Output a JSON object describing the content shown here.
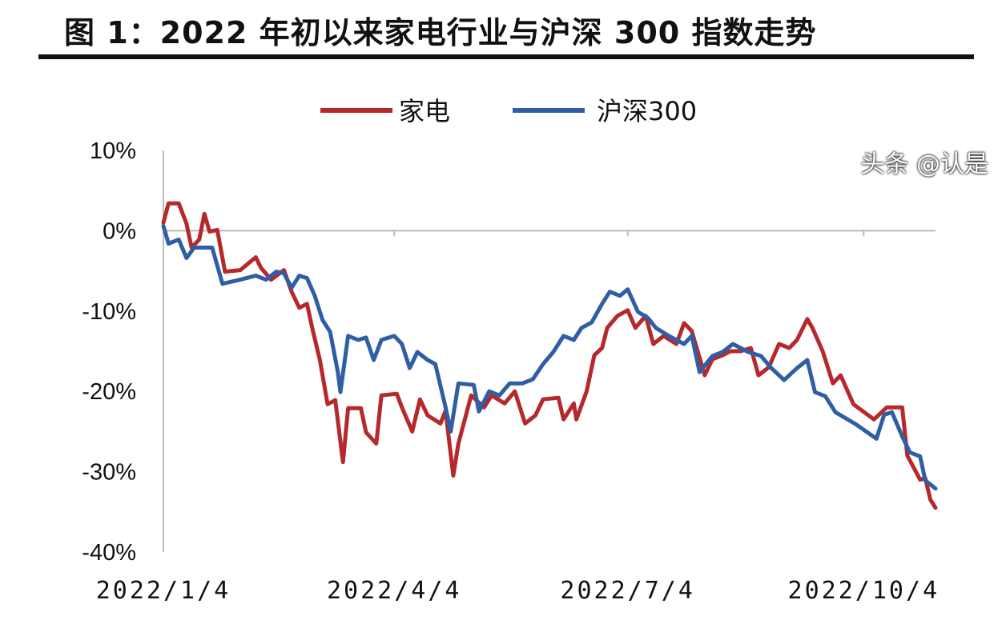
{
  "title": "图 1：2022 年初以来家电行业与沪深 300 指数走势",
  "watermark": "头条 @认是",
  "chart_data": {
    "type": "line",
    "title": "图 1：2022 年初以来家电行业与沪深 300 指数走势",
    "xlabel": "",
    "ylabel": "",
    "ylim": [
      -40,
      10
    ],
    "yticks": [
      "10%",
      "0%",
      "-10%",
      "-20%",
      "-30%",
      "-40%"
    ],
    "ytick_values": [
      10,
      0,
      -10,
      -20,
      -30,
      -40
    ],
    "xticks": [
      "2022/1/4",
      "2022/4/4",
      "2022/7/4",
      "2022/10/4"
    ],
    "xtick_values": [
      "2022-01-04",
      "2022-04-04",
      "2022-07-04",
      "2022-10-04"
    ],
    "xlim": [
      "2022-01-04",
      "2022-11-01"
    ],
    "grid": false,
    "legend": "top-center",
    "series": [
      {
        "name": "家电",
        "color": "#B5292C",
        "points": [
          [
            "2022-01-04",
            1.0
          ],
          [
            "2022-01-06",
            3.4
          ],
          [
            "2022-01-10",
            3.4
          ],
          [
            "2022-01-13",
            0.9
          ],
          [
            "2022-01-15",
            -2.1
          ],
          [
            "2022-01-18",
            -1.1
          ],
          [
            "2022-01-20",
            2.1
          ],
          [
            "2022-01-22",
            -0.1
          ],
          [
            "2022-01-25",
            0.1
          ],
          [
            "2022-01-28",
            -5.1
          ],
          [
            "2022-02-03",
            -4.9
          ],
          [
            "2022-02-09",
            -3.3
          ],
          [
            "2022-02-11",
            -4.6
          ],
          [
            "2022-02-15",
            -6.1
          ],
          [
            "2022-02-20",
            -4.9
          ],
          [
            "2022-02-23",
            -7.6
          ],
          [
            "2022-02-26",
            -9.6
          ],
          [
            "2022-03-01",
            -9.1
          ],
          [
            "2022-03-03",
            -12.1
          ],
          [
            "2022-03-06",
            -16.1
          ],
          [
            "2022-03-09",
            -21.6
          ],
          [
            "2022-03-12",
            -21.1
          ],
          [
            "2022-03-15",
            -28.8
          ],
          [
            "2022-03-17",
            -22.1
          ],
          [
            "2022-03-22",
            -22.1
          ],
          [
            "2022-03-24",
            -25.1
          ],
          [
            "2022-03-28",
            -26.5
          ],
          [
            "2022-03-30",
            -20.5
          ],
          [
            "2022-04-05",
            -20.3
          ],
          [
            "2022-04-07",
            -22.0
          ],
          [
            "2022-04-11",
            -25.0
          ],
          [
            "2022-04-14",
            -21.0
          ],
          [
            "2022-04-17",
            -23.0
          ],
          [
            "2022-04-22",
            -24.0
          ],
          [
            "2022-04-24",
            -22.4
          ],
          [
            "2022-04-27",
            -30.5
          ],
          [
            "2022-04-29",
            -26.5
          ],
          [
            "2022-05-04",
            -20.5
          ],
          [
            "2022-05-09",
            -22.0
          ],
          [
            "2022-05-12",
            -20.5
          ],
          [
            "2022-05-17",
            -21.5
          ],
          [
            "2022-05-21",
            -20.0
          ],
          [
            "2022-05-25",
            -24.0
          ],
          [
            "2022-05-29",
            -23.0
          ],
          [
            "2022-06-01",
            -21.0
          ],
          [
            "2022-06-07",
            -20.8
          ],
          [
            "2022-06-09",
            -23.5
          ],
          [
            "2022-06-13",
            -21.5
          ],
          [
            "2022-06-14",
            -23.5
          ],
          [
            "2022-06-18",
            -20.0
          ],
          [
            "2022-06-21",
            -15.5
          ],
          [
            "2022-06-24",
            -14.6
          ],
          [
            "2022-06-26",
            -12.1
          ],
          [
            "2022-06-30",
            -10.6
          ],
          [
            "2022-07-04",
            -9.9
          ],
          [
            "2022-07-07",
            -12.1
          ],
          [
            "2022-07-11",
            -10.6
          ],
          [
            "2022-07-14",
            -14.1
          ],
          [
            "2022-07-18",
            -13.1
          ],
          [
            "2022-07-23",
            -14.1
          ],
          [
            "2022-07-26",
            -11.5
          ],
          [
            "2022-07-29",
            -12.5
          ],
          [
            "2022-08-03",
            -18.0
          ],
          [
            "2022-08-06",
            -16.0
          ],
          [
            "2022-08-10",
            -15.5
          ],
          [
            "2022-08-13",
            -15.0
          ],
          [
            "2022-08-17",
            -15.0
          ],
          [
            "2022-08-21",
            -14.6
          ],
          [
            "2022-08-24",
            -18.0
          ],
          [
            "2022-08-28",
            -17.0
          ],
          [
            "2022-09-01",
            -14.1
          ],
          [
            "2022-09-05",
            -14.6
          ],
          [
            "2022-09-08",
            -13.6
          ],
          [
            "2022-09-12",
            -11.0
          ],
          [
            "2022-09-14",
            -12.1
          ],
          [
            "2022-09-18",
            -15.0
          ],
          [
            "2022-09-22",
            -19.0
          ],
          [
            "2022-09-25",
            -18.0
          ],
          [
            "2022-09-30",
            -21.6
          ],
          [
            "2022-10-08",
            -23.5
          ],
          [
            "2022-10-13",
            -22.0
          ],
          [
            "2022-10-19",
            -22.0
          ],
          [
            "2022-10-21",
            -28.0
          ],
          [
            "2022-10-26",
            -31.0
          ],
          [
            "2022-10-28",
            -30.8
          ],
          [
            "2022-10-30",
            -33.5
          ],
          [
            "2022-11-01",
            -34.5
          ]
        ]
      },
      {
        "name": "沪深300",
        "color": "#2F5EA6",
        "points": [
          [
            "2022-01-04",
            0.6
          ],
          [
            "2022-01-06",
            -1.6
          ],
          [
            "2022-01-10",
            -1.1
          ],
          [
            "2022-01-13",
            -3.4
          ],
          [
            "2022-01-16",
            -2.1
          ],
          [
            "2022-01-20",
            -2.1
          ],
          [
            "2022-01-23",
            -2.1
          ],
          [
            "2022-01-27",
            -6.6
          ],
          [
            "2022-02-03",
            -6.1
          ],
          [
            "2022-02-09",
            -5.6
          ],
          [
            "2022-02-13",
            -6.1
          ],
          [
            "2022-02-17",
            -5.1
          ],
          [
            "2022-02-20",
            -5.3
          ],
          [
            "2022-02-23",
            -7.1
          ],
          [
            "2022-02-26",
            -5.6
          ],
          [
            "2022-03-01",
            -5.9
          ],
          [
            "2022-03-04",
            -8.1
          ],
          [
            "2022-03-07",
            -11.1
          ],
          [
            "2022-03-10",
            -12.6
          ],
          [
            "2022-03-13",
            -17.6
          ],
          [
            "2022-03-14",
            -20.1
          ],
          [
            "2022-03-17",
            -13.1
          ],
          [
            "2022-03-21",
            -13.6
          ],
          [
            "2022-03-24",
            -13.3
          ],
          [
            "2022-03-27",
            -16.1
          ],
          [
            "2022-03-30",
            -13.6
          ],
          [
            "2022-04-04",
            -13.1
          ],
          [
            "2022-04-07",
            -14.1
          ],
          [
            "2022-04-10",
            -17.1
          ],
          [
            "2022-04-13",
            -15.1
          ],
          [
            "2022-04-17",
            -16.1
          ],
          [
            "2022-04-20",
            -16.6
          ],
          [
            "2022-04-24",
            -22.0
          ],
          [
            "2022-04-26",
            -25.0
          ],
          [
            "2022-04-29",
            -19.0
          ],
          [
            "2022-05-05",
            -19.2
          ],
          [
            "2022-05-07",
            -22.5
          ],
          [
            "2022-05-11",
            -20.0
          ],
          [
            "2022-05-15",
            -20.5
          ],
          [
            "2022-05-19",
            -19.0
          ],
          [
            "2022-05-24",
            -19.0
          ],
          [
            "2022-05-28",
            -18.5
          ],
          [
            "2022-06-01",
            -16.6
          ],
          [
            "2022-06-05",
            -15.1
          ],
          [
            "2022-06-09",
            -13.1
          ],
          [
            "2022-06-13",
            -13.6
          ],
          [
            "2022-06-16",
            -12.1
          ],
          [
            "2022-06-20",
            -11.4
          ],
          [
            "2022-06-24",
            -9.1
          ],
          [
            "2022-06-27",
            -7.6
          ],
          [
            "2022-07-01",
            -8.1
          ],
          [
            "2022-07-04",
            -7.3
          ],
          [
            "2022-07-08",
            -10.1
          ],
          [
            "2022-07-12",
            -10.9
          ],
          [
            "2022-07-15",
            -12.1
          ],
          [
            "2022-07-20",
            -13.1
          ],
          [
            "2022-07-26",
            -14.1
          ],
          [
            "2022-07-29",
            -13.1
          ],
          [
            "2022-08-01",
            -17.6
          ],
          [
            "2022-08-06",
            -15.6
          ],
          [
            "2022-08-10",
            -15.1
          ],
          [
            "2022-08-14",
            -14.1
          ],
          [
            "2022-08-17",
            -14.6
          ],
          [
            "2022-08-20",
            -15.1
          ],
          [
            "2022-08-25",
            -15.6
          ],
          [
            "2022-08-29",
            -17.1
          ],
          [
            "2022-09-03",
            -18.6
          ],
          [
            "2022-09-08",
            -17.1
          ],
          [
            "2022-09-12",
            -16.1
          ],
          [
            "2022-09-15",
            -20.1
          ],
          [
            "2022-09-19",
            -20.6
          ],
          [
            "2022-09-23",
            -22.6
          ],
          [
            "2022-10-01",
            -24.1
          ],
          [
            "2022-10-09",
            -25.9
          ],
          [
            "2022-10-12",
            -22.9
          ],
          [
            "2022-10-15",
            -22.6
          ],
          [
            "2022-10-19",
            -25.6
          ],
          [
            "2022-10-22",
            -27.6
          ],
          [
            "2022-10-26",
            -28.1
          ],
          [
            "2022-10-28",
            -31.1
          ],
          [
            "2022-11-01",
            -32.1
          ]
        ]
      }
    ]
  }
}
